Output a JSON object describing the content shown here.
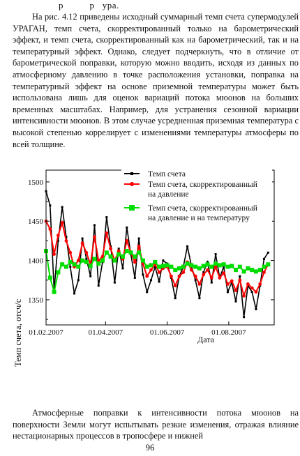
{
  "header_fragment": "р          р   ура.",
  "paragraph1": "На рис. 4.12 приведены исходный суммарный темп счета супермодулей УРАГАН, темп счета, скорректированный только на барометрический эффект, и темп счета, скорректированный как на барометрический, так и на температурный эффект. Однако, следует подчеркнуть, что в отличие от барометрической поправки, которую можно вводить, исходя из данных по атмосферному давлению в точке расположения установки, поправка на температурный эффект на основе приземной температуры может быть использована лишь для оценок вариаций потока мюонов на больших временных масштабах. Например, для устранения сезонной вариации интенсивности мюонов. В этом случае усредненная приземная температура с высокой степенью коррелирует с изменениями температуры атмосферы по всей толщине.",
  "paragraph2": "Атмосферные поправки к интенсивности потока мюонов на поверхности Земли могут испытывать резкие изменения, отражая влияние нестационарных процессов в тропосфере и нижней",
  "page_number": "96",
  "colors": {
    "raw": "#000000",
    "baro": "#ff0000",
    "baro_temp": "#00dd00"
  },
  "chart_data": {
    "type": "line",
    "xlabel": "Дата",
    "ylabel": "Темп счета, отсч/с",
    "xlim": [
      "2007-02-01",
      "2007-09-15"
    ],
    "ylim": [
      1318,
      1515
    ],
    "yticks": [
      1350,
      1400,
      1450,
      1500
    ],
    "xticks": [
      "01.02.2007",
      "01.04.2007",
      "01.06.2007",
      "01.08.2007"
    ],
    "legend_position": "top-right",
    "series": [
      {
        "name": "Темп счета",
        "key": "raw",
        "marker": "square-small",
        "x": [
          "2007-02-01",
          "2007-02-05",
          "2007-02-09",
          "2007-02-13",
          "2007-02-17",
          "2007-02-21",
          "2007-02-25",
          "2007-03-01",
          "2007-03-05",
          "2007-03-09",
          "2007-03-13",
          "2007-03-17",
          "2007-03-21",
          "2007-03-25",
          "2007-03-29",
          "2007-04-02",
          "2007-04-06",
          "2007-04-10",
          "2007-04-14",
          "2007-04-18",
          "2007-04-22",
          "2007-04-26",
          "2007-04-30",
          "2007-05-04",
          "2007-05-08",
          "2007-05-12",
          "2007-05-16",
          "2007-05-20",
          "2007-05-24",
          "2007-05-28",
          "2007-06-01",
          "2007-06-05",
          "2007-06-09",
          "2007-06-13",
          "2007-06-17",
          "2007-06-21",
          "2007-06-25",
          "2007-06-29",
          "2007-07-03",
          "2007-07-07",
          "2007-07-11",
          "2007-07-15",
          "2007-07-19",
          "2007-07-23",
          "2007-07-27",
          "2007-07-31",
          "2007-08-04",
          "2007-08-08",
          "2007-08-12",
          "2007-08-16",
          "2007-08-20",
          "2007-08-24",
          "2007-08-28",
          "2007-09-01",
          "2007-09-05",
          "2007-09-09"
        ],
        "values": [
          1488,
          1470,
          1362,
          1425,
          1468,
          1430,
          1392,
          1358,
          1375,
          1428,
          1402,
          1380,
          1445,
          1368,
          1398,
          1455,
          1418,
          1372,
          1415,
          1390,
          1442,
          1408,
          1378,
          1428,
          1382,
          1360,
          1375,
          1392,
          1373,
          1400,
          1396,
          1378,
          1352,
          1380,
          1392,
          1418,
          1393,
          1375,
          1352,
          1385,
          1398,
          1372,
          1408,
          1378,
          1392,
          1360,
          1372,
          1348,
          1380,
          1328,
          1368,
          1360,
          1338,
          1368,
          1402,
          1410
        ]
      },
      {
        "name": "Темп счета, скорректированный на давление",
        "key": "baro",
        "marker": "dot",
        "x": [
          "2007-02-01",
          "2007-02-05",
          "2007-02-09",
          "2007-02-13",
          "2007-02-17",
          "2007-02-21",
          "2007-02-25",
          "2007-03-01",
          "2007-03-05",
          "2007-03-09",
          "2007-03-13",
          "2007-03-17",
          "2007-03-21",
          "2007-03-25",
          "2007-03-29",
          "2007-04-02",
          "2007-04-06",
          "2007-04-10",
          "2007-04-14",
          "2007-04-18",
          "2007-04-22",
          "2007-04-26",
          "2007-04-30",
          "2007-05-04",
          "2007-05-08",
          "2007-05-12",
          "2007-05-16",
          "2007-05-20",
          "2007-05-24",
          "2007-05-28",
          "2007-06-01",
          "2007-06-05",
          "2007-06-09",
          "2007-06-13",
          "2007-06-17",
          "2007-06-21",
          "2007-06-25",
          "2007-06-29",
          "2007-07-03",
          "2007-07-07",
          "2007-07-11",
          "2007-07-15",
          "2007-07-19",
          "2007-07-23",
          "2007-07-27",
          "2007-07-31",
          "2007-08-04",
          "2007-08-08",
          "2007-08-12",
          "2007-08-16",
          "2007-08-20",
          "2007-08-24",
          "2007-08-28",
          "2007-09-01",
          "2007-09-05",
          "2007-09-09"
        ],
        "values": [
          1450,
          1440,
          1408,
          1432,
          1448,
          1425,
          1410,
          1392,
          1400,
          1422,
          1410,
          1395,
          1430,
          1400,
          1405,
          1435,
          1415,
          1400,
          1412,
          1402,
          1425,
          1410,
          1398,
          1418,
          1396,
          1380,
          1388,
          1395,
          1385,
          1390,
          1392,
          1380,
          1368,
          1380,
          1385,
          1398,
          1388,
          1380,
          1370,
          1382,
          1388,
          1378,
          1392,
          1378,
          1384,
          1370,
          1374,
          1362,
          1375,
          1355,
          1370,
          1365,
          1360,
          1370,
          1385,
          1395
        ]
      },
      {
        "name": "Темп счета, скорректированный на давление и на температуру",
        "key": "baro_temp",
        "marker": "square",
        "x": [
          "2007-02-01",
          "2007-02-05",
          "2007-02-09",
          "2007-02-13",
          "2007-02-17",
          "2007-02-21",
          "2007-02-25",
          "2007-03-01",
          "2007-03-05",
          "2007-03-09",
          "2007-03-13",
          "2007-03-17",
          "2007-03-21",
          "2007-03-25",
          "2007-03-29",
          "2007-04-02",
          "2007-04-06",
          "2007-04-10",
          "2007-04-14",
          "2007-04-18",
          "2007-04-22",
          "2007-04-26",
          "2007-04-30",
          "2007-05-04",
          "2007-05-08",
          "2007-05-12",
          "2007-05-16",
          "2007-05-20",
          "2007-05-24",
          "2007-05-28",
          "2007-06-01",
          "2007-06-05",
          "2007-06-09",
          "2007-06-13",
          "2007-06-17",
          "2007-06-21",
          "2007-06-25",
          "2007-06-29",
          "2007-07-03",
          "2007-07-07",
          "2007-07-11",
          "2007-07-15",
          "2007-07-19",
          "2007-07-23",
          "2007-07-27",
          "2007-07-31",
          "2007-08-04",
          "2007-08-08",
          "2007-08-12",
          "2007-08-16",
          "2007-08-20",
          "2007-08-24",
          "2007-08-28",
          "2007-09-01",
          "2007-09-05",
          "2007-09-09"
        ],
        "values": [
          1412,
          1378,
          1360,
          1385,
          1395,
          1392,
          1398,
          1395,
          1392,
          1400,
          1398,
          1393,
          1402,
          1396,
          1400,
          1410,
          1405,
          1400,
          1408,
          1405,
          1412,
          1410,
          1405,
          1410,
          1400,
          1392,
          1394,
          1398,
          1392,
          1393,
          1394,
          1392,
          1388,
          1390,
          1392,
          1396,
          1394,
          1392,
          1390,
          1393,
          1395,
          1392,
          1396,
          1394,
          1395,
          1392,
          1393,
          1388,
          1392,
          1386,
          1390,
          1388,
          1386,
          1388,
          1392,
          1395
        ]
      }
    ]
  }
}
